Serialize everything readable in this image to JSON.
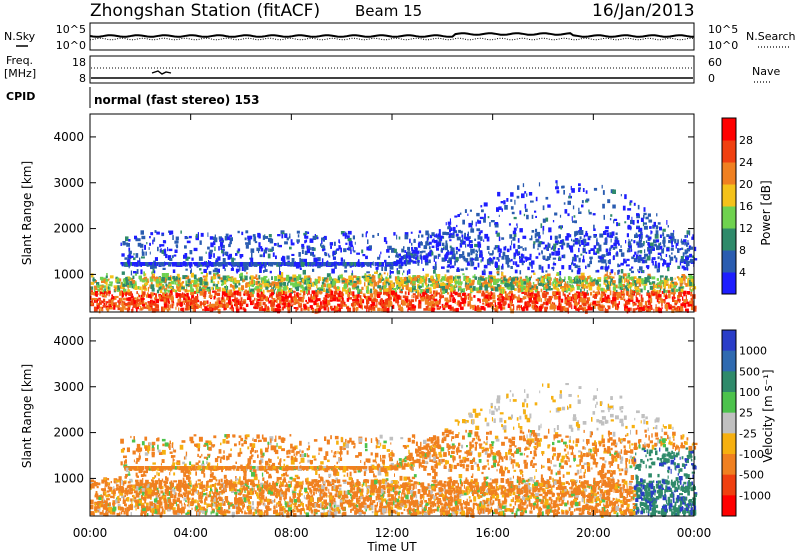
{
  "header": {
    "station": "Zhongshan Station (fitACF)",
    "beam": "Beam 15",
    "date": "16/Jan/2013"
  },
  "top_panels": {
    "nsky_label": "N.Sky",
    "nsky_ticks": [
      "10^5",
      "10^0"
    ],
    "nsearch_ticks": [
      "10^5",
      "10^0"
    ],
    "nsearch_label": "N.Search",
    "freq_label": "Freq.",
    "freq_unit": "[MHz]",
    "freq_ticks": [
      "18",
      "8"
    ],
    "nave_ticks": [
      "60",
      "0"
    ],
    "nave_label": "Nave",
    "cpid_label": "CPID",
    "cpid_text": "normal (fast stereo) 153"
  },
  "chart_data": [
    {
      "type": "heatmap",
      "name": "power",
      "ylabel": "Slant Range [km]",
      "xlabel": "Time UT",
      "yticks": [
        "1000",
        "2000",
        "3000",
        "4000"
      ],
      "ylim": [
        180,
        4500
      ],
      "xticks": [
        "00:00",
        "04:00",
        "08:00",
        "12:00",
        "16:00",
        "20:00",
        "00:00"
      ],
      "colorbar": {
        "label": "Power [dB]",
        "ticks": [
          "4",
          "8",
          "12",
          "16",
          "20",
          "24",
          "28"
        ],
        "colors": [
          "#1e1eff",
          "#2a5cb0",
          "#2f8a6a",
          "#6fd24f",
          "#f4c21a",
          "#f08020",
          "#f04010",
          "#ff0000"
        ]
      }
    },
    {
      "type": "heatmap",
      "name": "velocity",
      "ylabel": "Slant Range [km]",
      "xlabel": "Time UT",
      "yticks": [
        "1000",
        "2000",
        "3000",
        "4000"
      ],
      "ylim": [
        180,
        4500
      ],
      "xticks": [
        "00:00",
        "04:00",
        "08:00",
        "12:00",
        "16:00",
        "20:00",
        "00:00"
      ],
      "colorbar": {
        "label": "Velocity [m s⁻¹]",
        "ticks": [
          "1000",
          "500",
          "100",
          "25",
          "-25",
          "-100",
          "-500",
          "-1000"
        ],
        "colors": [
          "#2a3dc8",
          "#2f6ab0",
          "#2f8a6a",
          "#4cc24c",
          "#c0c0c0",
          "#f6b010",
          "#f08020",
          "#f04010",
          "#ff0000"
        ]
      }
    }
  ],
  "footer": {
    "xlabel": "Time UT"
  }
}
